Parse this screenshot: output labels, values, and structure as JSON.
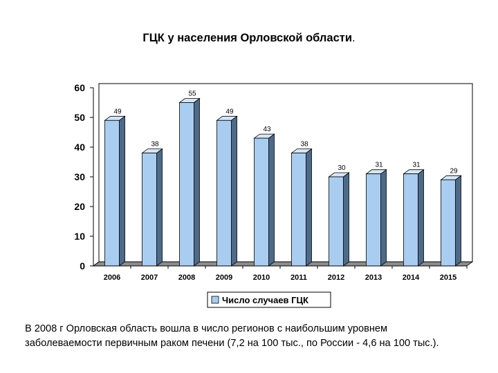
{
  "title": "ГЦК у населения Орловской области",
  "title_suffix": ".",
  "chart_data": {
    "type": "bar",
    "categories": [
      "2006",
      "2007",
      "2008",
      "2009",
      "2010",
      "2011",
      "2012",
      "2013",
      "2014",
      "2015"
    ],
    "series": [
      {
        "name": "Число случаев ГЦК",
        "values": [
          49,
          38,
          55,
          49,
          43,
          38,
          30,
          31,
          31,
          29
        ]
      }
    ],
    "ylim": [
      0,
      60
    ],
    "yticks": [
      "0",
      "10",
      "20",
      "30",
      "40",
      "50",
      "60"
    ],
    "grid": false,
    "legend": "bottom",
    "bar_color": "#a9cdf0",
    "bar_side_color": "#4d6a8a",
    "bar_top_color": "#d6e6f6"
  },
  "caption": {
    "line1": "В 2008 г Орловская область вошла в число регионов с наибольшим уровнем",
    "line2": "заболеваемости первичным раком печени (7,2 на 100 тыс., по России - 4,6 на 100 тыс.)."
  }
}
